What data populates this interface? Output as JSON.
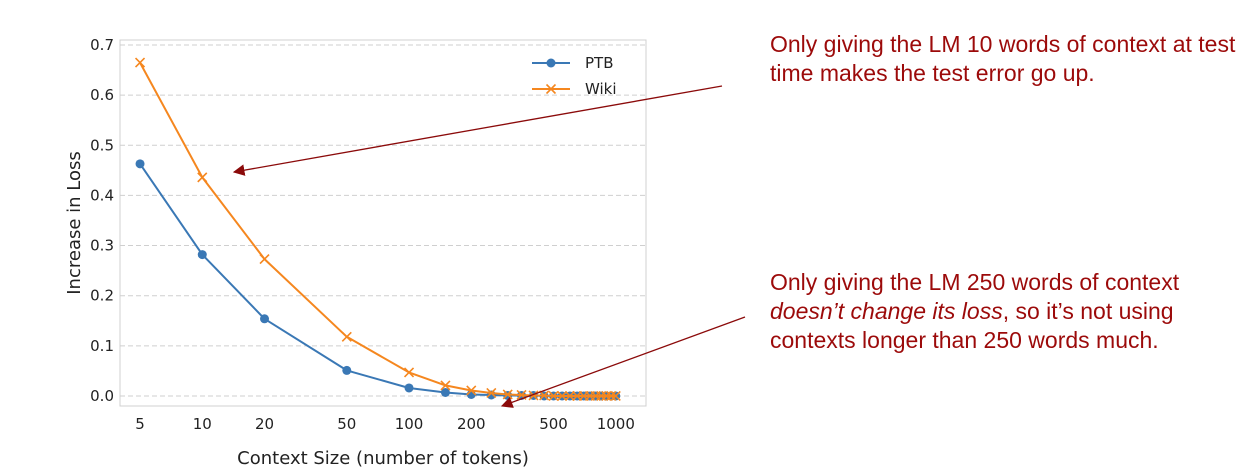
{
  "chart_data": {
    "type": "line",
    "title": "",
    "xlabel": "Context Size (number of tokens)",
    "ylabel": "Increase in Loss",
    "xscale": "log",
    "xlim": [
      4,
      1400
    ],
    "ylim": [
      -0.02,
      0.71
    ],
    "xticks": [
      5,
      10,
      20,
      50,
      100,
      200,
      500,
      1000
    ],
    "xtick_labels": [
      "5",
      "10",
      "20",
      "50",
      "100",
      "200",
      "500",
      "1000"
    ],
    "yticks": [
      0.0,
      0.1,
      0.2,
      0.3,
      0.4,
      0.5,
      0.6,
      0.7
    ],
    "ytick_labels": [
      "0.0",
      "0.1",
      "0.2",
      "0.3",
      "0.4",
      "0.5",
      "0.6",
      "0.7"
    ],
    "grid": "horizontal dashed",
    "legend": "top-right",
    "series": [
      {
        "name": "PTB",
        "color": "#3a78b5",
        "marker": "circle",
        "x": [
          5,
          10,
          20,
          50,
          100,
          150,
          200,
          250,
          300,
          350,
          400,
          450,
          500,
          550,
          600,
          650,
          700,
          750,
          800,
          850,
          900,
          950,
          1000
        ],
        "y": [
          0.463,
          0.282,
          0.154,
          0.051,
          0.016,
          0.007,
          0.003,
          0.002,
          0.001,
          0.001,
          0.001,
          0.0,
          0.0,
          0.0,
          0.0,
          0.0,
          0.0,
          0.0,
          0.0,
          0.0,
          0.0,
          0.0,
          0.0
        ]
      },
      {
        "name": "Wiki",
        "color": "#f5871f",
        "marker": "x",
        "x": [
          5,
          10,
          20,
          50,
          100,
          150,
          200,
          250,
          300,
          350,
          400,
          450,
          500,
          550,
          600,
          650,
          700,
          750,
          800,
          850,
          900,
          950,
          1000
        ],
        "y": [
          0.665,
          0.436,
          0.273,
          0.118,
          0.047,
          0.021,
          0.011,
          0.006,
          0.003,
          0.002,
          0.001,
          0.001,
          0.0,
          0.0,
          0.0,
          0.0,
          0.0,
          0.0,
          0.0,
          0.0,
          0.0,
          0.0,
          0.0
        ]
      }
    ]
  },
  "annotations": {
    "note1": {
      "text": "Only giving the LM 10 words of context at test time makes the test error go up.",
      "arrow_color": "#8b0a0a"
    },
    "note2": {
      "text_before": "Only giving the LM 250 words of context ",
      "text_italic": "doesn’t change its loss",
      "text_after": ", so it’s not using contexts longer than 250 words much.",
      "arrow_color": "#8b0a0a"
    }
  }
}
